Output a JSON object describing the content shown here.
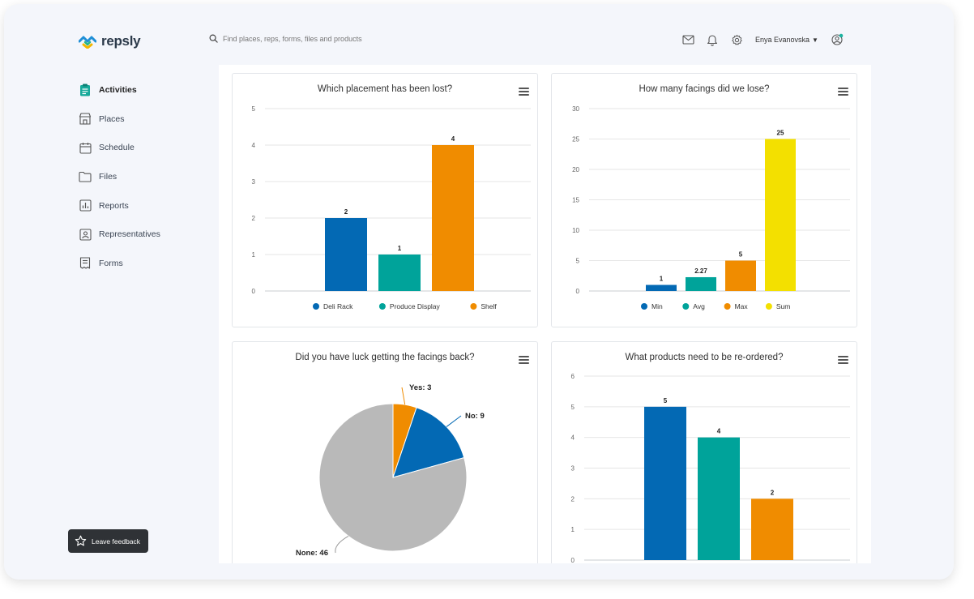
{
  "brand": {
    "name": "repsly"
  },
  "search": {
    "placeholder": "Find places, reps, forms, files and products"
  },
  "header": {
    "user_name": "Enya Evanovska"
  },
  "sidebar": {
    "items": [
      {
        "label": "Activities",
        "icon": "clipboard-icon",
        "active": true
      },
      {
        "label": "Places",
        "icon": "store-icon"
      },
      {
        "label": "Schedule",
        "icon": "calendar-icon"
      },
      {
        "label": "Files",
        "icon": "folder-icon"
      },
      {
        "label": "Reports",
        "icon": "bar-chart-icon"
      },
      {
        "label": "Representatives",
        "icon": "id-badge-icon"
      },
      {
        "label": "Forms",
        "icon": "form-icon"
      }
    ]
  },
  "feedback": {
    "label": "Leave feedback"
  },
  "colors": {
    "blue": "#0369b4",
    "teal": "#00a39a",
    "orange": "#f08c00",
    "yellow": "#f3e000",
    "gray": "#b9b9b9"
  },
  "chart_data": [
    {
      "type": "bar",
      "title": "Which placement has been lost?",
      "categories": [
        "Deli Rack",
        "Produce Display",
        "Shelf"
      ],
      "values": [
        2,
        1,
        4
      ],
      "colors": [
        "#0369b4",
        "#00a39a",
        "#f08c00"
      ],
      "ylim": [
        0,
        5
      ],
      "yticks": [
        0,
        1,
        2,
        3,
        4,
        5
      ],
      "legend": "bottom",
      "grid": true
    },
    {
      "type": "bar",
      "title": "How many facings did we lose?",
      "categories": [
        "Min",
        "Avg",
        "Max",
        "Sum"
      ],
      "values": [
        1,
        2.27,
        5,
        25
      ],
      "colors": [
        "#0369b4",
        "#00a39a",
        "#f08c00",
        "#f3e000"
      ],
      "ylim": [
        0,
        30
      ],
      "yticks": [
        0,
        5,
        10,
        15,
        20,
        25,
        30
      ],
      "legend": "bottom",
      "grid": true
    },
    {
      "type": "pie",
      "title": "Did you have luck getting the facings back?",
      "categories": [
        "Yes",
        "No",
        "None"
      ],
      "values": [
        3,
        9,
        46
      ],
      "labels": [
        "Yes: 3",
        "No: 9",
        "None: 46"
      ],
      "colors": [
        "#f08c00",
        "#0369b4",
        "#b9b9b9"
      ]
    },
    {
      "type": "bar",
      "title": "What products need to be re-ordered?",
      "categories": [
        "",
        "",
        ""
      ],
      "values": [
        5,
        4,
        2
      ],
      "colors": [
        "#0369b4",
        "#00a39a",
        "#f08c00"
      ],
      "ylim": [
        0,
        6
      ],
      "yticks": [
        0,
        1,
        2,
        3,
        4,
        5,
        6
      ],
      "grid": true
    }
  ]
}
